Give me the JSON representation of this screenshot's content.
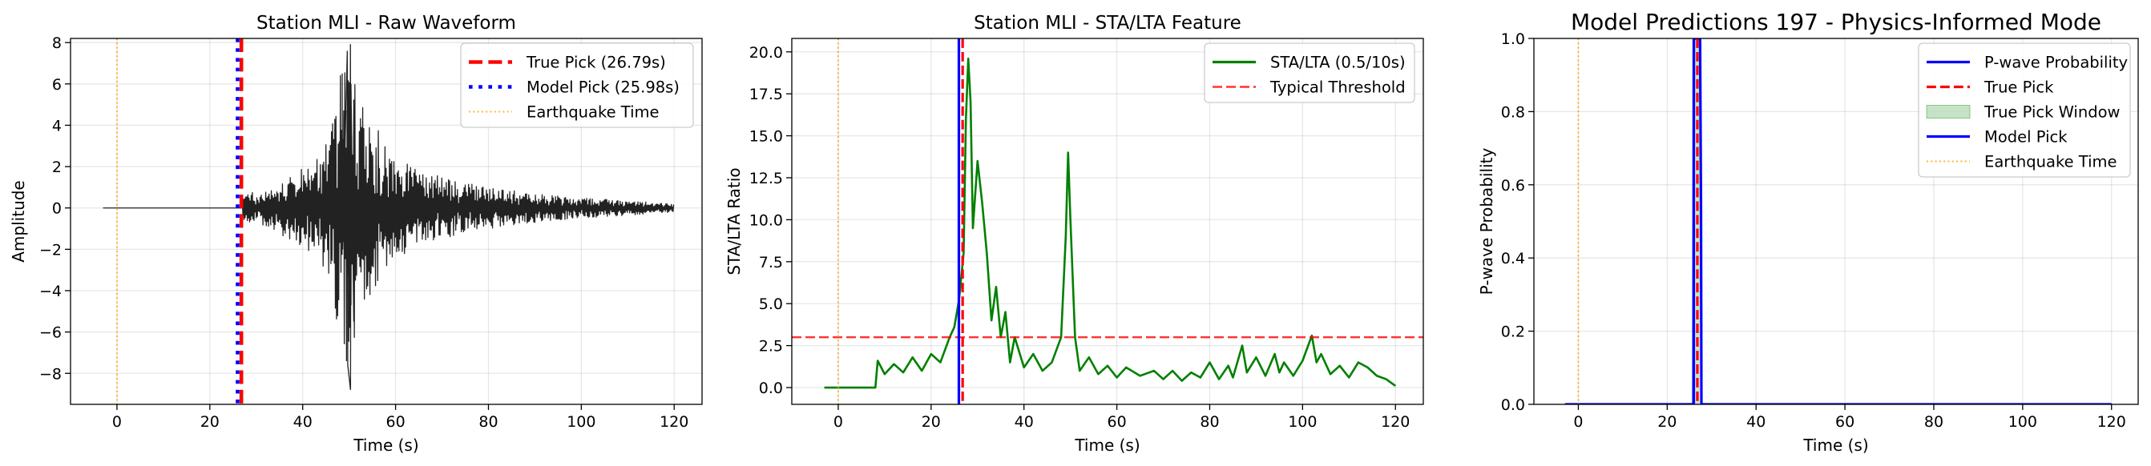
{
  "chart_data": [
    {
      "type": "line",
      "title": "Station MLI - Raw Waveform",
      "xlabel": "Time (s)",
      "ylabel": "Amplitude",
      "xlim": [
        -10,
        126
      ],
      "ylim": [
        -9.5,
        8.2
      ],
      "xticks": [
        0,
        20,
        40,
        60,
        80,
        100,
        120
      ],
      "yticks": [
        -8,
        -6,
        -4,
        -2,
        0,
        2,
        4,
        6,
        8
      ],
      "grid": true,
      "legend_position": "top-right",
      "series": [
        {
          "name": "True Pick (26.79s)",
          "kind": "vline",
          "x": 26.79,
          "color": "#ff0000",
          "style": "dashed"
        },
        {
          "name": "Model Pick (25.98s)",
          "kind": "vline",
          "x": 25.98,
          "color": "#0000ff",
          "style": "dotted"
        },
        {
          "name": "Earthquake Time",
          "kind": "vline",
          "x": 0,
          "color": "#ffa500",
          "style": "dotted"
        }
      ],
      "waveform": {
        "color": "#222222",
        "t_start": -3,
        "t_end": 120,
        "onset": 27,
        "envelope": [
          [
            27,
            0.7
          ],
          [
            33,
            0.9
          ],
          [
            38,
            1.8
          ],
          [
            42,
            2.2
          ],
          [
            46,
            3.5
          ],
          [
            48,
            6.5
          ],
          [
            50,
            8.5
          ],
          [
            52,
            5.5
          ],
          [
            55,
            4.2
          ],
          [
            60,
            2.5
          ],
          [
            65,
            1.8
          ],
          [
            70,
            1.5
          ],
          [
            80,
            1.0
          ],
          [
            90,
            0.7
          ],
          [
            100,
            0.5
          ],
          [
            110,
            0.35
          ],
          [
            120,
            0.2
          ]
        ]
      }
    },
    {
      "type": "line",
      "title": "Station MLI - STA/LTA Feature",
      "xlabel": "Time (s)",
      "ylabel": "STA/LTA Ratio",
      "xlim": [
        -10,
        126
      ],
      "ylim": [
        -1.0,
        20.8
      ],
      "xticks": [
        0,
        20,
        40,
        60,
        80,
        100,
        120
      ],
      "yticks": [
        0.0,
        2.5,
        5.0,
        7.5,
        10.0,
        12.5,
        15.0,
        17.5,
        20.0
      ],
      "grid": true,
      "legend_position": "top-right",
      "series": [
        {
          "name": "STA/LTA (0.5/10s)",
          "kind": "curve",
          "color": "#008000",
          "points": [
            [
              -3,
              0
            ],
            [
              8,
              0
            ],
            [
              8.5,
              1.6
            ],
            [
              10,
              0.8
            ],
            [
              12,
              1.4
            ],
            [
              14,
              0.9
            ],
            [
              16,
              1.8
            ],
            [
              18,
              1.0
            ],
            [
              20,
              2.0
            ],
            [
              22,
              1.5
            ],
            [
              24,
              3.0
            ],
            [
              25,
              3.6
            ],
            [
              26,
              5.2
            ],
            [
              27,
              8.0
            ],
            [
              27.5,
              16.0
            ],
            [
              28,
              19.6
            ],
            [
              28.5,
              17.0
            ],
            [
              29,
              9.5
            ],
            [
              30,
              13.5
            ],
            [
              31,
              11.0
            ],
            [
              32,
              8.0
            ],
            [
              33,
              4.0
            ],
            [
              34,
              6.0
            ],
            [
              35,
              3.0
            ],
            [
              36,
              4.5
            ],
            [
              37,
              1.5
            ],
            [
              38,
              3.0
            ],
            [
              40,
              1.2
            ],
            [
              42,
              2.0
            ],
            [
              44,
              1.0
            ],
            [
              46,
              1.5
            ],
            [
              48,
              3.0
            ],
            [
              49,
              9.0
            ],
            [
              49.5,
              14.0
            ],
            [
              50,
              10.0
            ],
            [
              51,
              3.0
            ],
            [
              52,
              1.0
            ],
            [
              54,
              1.8
            ],
            [
              56,
              0.8
            ],
            [
              58,
              1.3
            ],
            [
              60,
              0.6
            ],
            [
              62,
              1.2
            ],
            [
              65,
              0.7
            ],
            [
              68,
              1.0
            ],
            [
              70,
              0.5
            ],
            [
              72,
              1.0
            ],
            [
              74,
              0.4
            ],
            [
              76,
              0.9
            ],
            [
              78,
              0.6
            ],
            [
              80,
              1.5
            ],
            [
              82,
              0.5
            ],
            [
              84,
              1.3
            ],
            [
              85,
              0.6
            ],
            [
              87,
              2.5
            ],
            [
              88,
              0.9
            ],
            [
              90,
              1.8
            ],
            [
              92,
              0.7
            ],
            [
              94,
              2.0
            ],
            [
              95,
              0.9
            ],
            [
              96,
              1.5
            ],
            [
              98,
              0.7
            ],
            [
              100,
              1.6
            ],
            [
              102,
              3.1
            ],
            [
              103,
              1.5
            ],
            [
              104,
              2.0
            ],
            [
              106,
              0.8
            ],
            [
              108,
              1.3
            ],
            [
              110,
              0.6
            ],
            [
              112,
              1.5
            ],
            [
              114,
              1.2
            ],
            [
              116,
              0.7
            ],
            [
              118,
              0.5
            ],
            [
              120,
              0.1
            ]
          ]
        },
        {
          "name": "Typical Threshold",
          "kind": "hline",
          "y": 3.0,
          "color": "#ff0000",
          "style": "dashed"
        },
        {
          "name": "",
          "kind": "vline",
          "x": 26.79,
          "color": "#ff0000",
          "style": "dashed"
        },
        {
          "name": "",
          "kind": "vline",
          "x": 25.98,
          "color": "#0000ff",
          "style": "solid"
        },
        {
          "name": "",
          "kind": "vline",
          "x": 0,
          "color": "#ffa500",
          "style": "dotted"
        }
      ]
    },
    {
      "type": "line",
      "title": "Model Predictions 197 - Physics-Informed Mode",
      "xlabel": "Time (s)",
      "ylabel": "P-wave Probability",
      "xlim": [
        -10,
        126
      ],
      "ylim": [
        0.0,
        1.0
      ],
      "xticks": [
        0,
        20,
        40,
        60,
        80,
        100,
        120
      ],
      "yticks": [
        0.0,
        0.2,
        0.4,
        0.6,
        0.8,
        1.0
      ],
      "grid": true,
      "legend_position": "top-right",
      "series": [
        {
          "name": "P-wave Probability",
          "kind": "curve",
          "color": "#0000ff",
          "points": [
            [
              -3,
              0
            ],
            [
              25.9,
              0
            ],
            [
              26.0,
              1.0
            ],
            [
              27.4,
              1.0
            ],
            [
              27.6,
              0.55
            ],
            [
              27.7,
              0.0
            ],
            [
              120,
              0
            ]
          ]
        },
        {
          "name": "True Pick",
          "kind": "vline",
          "x": 26.79,
          "color": "#ff0000",
          "style": "dashed"
        },
        {
          "name": "True Pick Window",
          "kind": "span",
          "x0": 26.29,
          "x1": 27.29,
          "color": "#008000"
        },
        {
          "name": "Model Pick",
          "kind": "vline",
          "x": 25.98,
          "color": "#0000ff",
          "style": "solid"
        },
        {
          "name": "Earthquake Time",
          "kind": "vline",
          "x": 0,
          "color": "#ffa500",
          "style": "dotted"
        }
      ]
    }
  ]
}
